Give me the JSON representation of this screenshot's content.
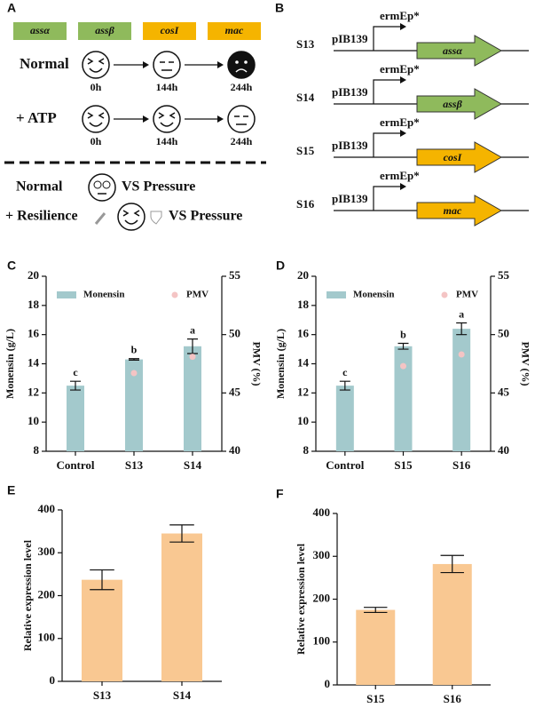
{
  "panel_a": {
    "label": "A",
    "genes": [
      "assα",
      "assβ",
      "cosI",
      "mac"
    ],
    "rows": [
      {
        "condition": "Normal",
        "times": [
          "0h",
          "144h",
          "244h"
        ]
      },
      {
        "condition": "+ ATP",
        "times": [
          "0h",
          "144h",
          "244h"
        ]
      }
    ],
    "comparisons": [
      {
        "condition": "Normal",
        "text": "VS Pressure"
      },
      {
        "condition": "+ Resilience",
        "text": "VS Pressure"
      }
    ]
  },
  "panel_b": {
    "label": "B",
    "constructs": [
      {
        "strain": "S13",
        "plasmid": "pIB139",
        "promoter": "ermEp*",
        "gene": "assα"
      },
      {
        "strain": "S14",
        "plasmid": "pIB139",
        "promoter": "ermEp*",
        "gene": "assβ"
      },
      {
        "strain": "S15",
        "plasmid": "pIB139",
        "promoter": "ermEp*",
        "gene": "cosI"
      },
      {
        "strain": "S16",
        "plasmid": "pIB139",
        "promoter": "ermEp*",
        "gene": "mac"
      }
    ]
  },
  "chart_data": [
    {
      "panel": "C",
      "type": "bar",
      "categories": [
        "Control",
        "S13",
        "S14"
      ],
      "y_label": "Monensin (g/L)",
      "y2_label": "PMV (%)",
      "ylim": [
        8,
        20
      ],
      "yticks": [
        8,
        10,
        12,
        14,
        16,
        18,
        20
      ],
      "y2lim": [
        40,
        55
      ],
      "y2ticks": [
        40,
        45,
        50,
        55
      ],
      "legend": "top",
      "series": [
        {
          "name": "Monensin",
          "color": "#a3c9cc",
          "values": [
            12.5,
            14.3,
            15.2
          ],
          "errors": [
            0.3,
            0.05,
            0.5
          ],
          "significance": [
            "c",
            "b",
            "a"
          ]
        },
        {
          "name": "PMV",
          "color": "#f4c4c4",
          "axis": "y2",
          "values": [
            null,
            46.7,
            48.1
          ]
        }
      ]
    },
    {
      "panel": "D",
      "type": "bar",
      "categories": [
        "Control",
        "S15",
        "S16"
      ],
      "y_label": "Monensin (g/L)",
      "y2_label": "PMV (%)",
      "ylim": [
        8,
        20
      ],
      "yticks": [
        8,
        10,
        12,
        14,
        16,
        18,
        20
      ],
      "y2lim": [
        40,
        55
      ],
      "y2ticks": [
        40,
        45,
        50,
        55
      ],
      "legend": "top",
      "series": [
        {
          "name": "Monensin",
          "color": "#a3c9cc",
          "values": [
            12.5,
            15.2,
            16.4
          ],
          "errors": [
            0.3,
            0.2,
            0.4
          ],
          "significance": [
            "c",
            "b",
            "a"
          ]
        },
        {
          "name": "PMV",
          "color": "#f4c4c4",
          "axis": "y2",
          "values": [
            null,
            47.3,
            48.3
          ]
        }
      ]
    },
    {
      "panel": "E",
      "type": "bar",
      "categories": [
        "S13",
        "S14"
      ],
      "y_label": "Relative expression level",
      "ylim": [
        0,
        400
      ],
      "yticks": [
        0,
        100,
        200,
        300,
        400
      ],
      "series": [
        {
          "color": "#f9c892",
          "values": [
            237,
            345
          ],
          "errors": [
            23,
            20
          ]
        }
      ]
    },
    {
      "panel": "F",
      "type": "bar",
      "categories": [
        "S15",
        "S16"
      ],
      "y_label": "Relative expression level",
      "ylim": [
        0,
        400
      ],
      "yticks": [
        0,
        100,
        200,
        300,
        400
      ],
      "series": [
        {
          "color": "#f9c892",
          "values": [
            175,
            282
          ],
          "errors": [
            6,
            20
          ]
        }
      ]
    }
  ]
}
